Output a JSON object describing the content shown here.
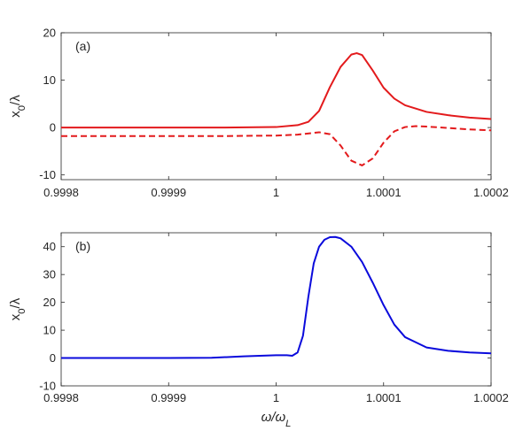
{
  "chart_data": [
    {
      "type": "line",
      "panel_label": "(a)",
      "ylabel": "x_0/λ",
      "xlabel": "",
      "xlim": [
        0.9998,
        1.0002
      ],
      "ylim": [
        -11,
        20
      ],
      "xticks": [
        0.9998,
        0.9999,
        1.0,
        1.0001,
        1.0002
      ],
      "xtick_labels": [
        "0.9998",
        "0.9999",
        "1",
        "1.0001",
        "1.0002"
      ],
      "yticks": [
        -10,
        0,
        10,
        20
      ],
      "ytick_labels": [
        "-10",
        "0",
        "10",
        "20"
      ],
      "grid": false,
      "series": [
        {
          "style": "solid",
          "color": "#e31a1c",
          "x": [
            0.9998,
            0.99985,
            0.9999,
            0.99995,
            1.0,
            1.00002,
            1.00003,
            1.00004,
            1.00005,
            1.00006,
            1.00007,
            1.000075,
            1.00008,
            1.00009,
            1.0001,
            1.00011,
            1.00012,
            1.00014,
            1.00016,
            1.00018,
            1.0002
          ],
          "y": [
            0,
            0,
            0,
            0,
            0.1,
            0.5,
            1.2,
            3.5,
            8.5,
            12.8,
            15.4,
            15.7,
            15.3,
            12.0,
            8.4,
            6.1,
            4.7,
            3.3,
            2.6,
            2.1,
            1.8
          ]
        },
        {
          "style": "dashed",
          "color": "#e31a1c",
          "x": [
            0.9998,
            0.99985,
            0.9999,
            0.99995,
            1.0,
            1.00002,
            1.00004,
            1.00005,
            1.00006,
            1.00007,
            1.00008,
            1.00009,
            1.0001,
            1.00011,
            1.00012,
            1.00013,
            1.00014,
            1.00016,
            1.00018,
            1.0002
          ],
          "y": [
            -1.8,
            -1.8,
            -1.8,
            -1.8,
            -1.7,
            -1.5,
            -1.0,
            -1.4,
            -3.8,
            -7.0,
            -8.0,
            -6.5,
            -3.2,
            -0.8,
            0.1,
            0.3,
            0.2,
            -0.1,
            -0.4,
            -0.6
          ]
        }
      ]
    },
    {
      "type": "line",
      "panel_label": "(b)",
      "ylabel": "x_0/λ",
      "xlabel": "ω/ω_L",
      "xlim": [
        0.9998,
        1.0002
      ],
      "ylim": [
        -10,
        45
      ],
      "xticks": [
        0.9998,
        0.9999,
        1.0,
        1.0001,
        1.0002
      ],
      "xtick_labels": [
        "0.9998",
        "0.9999",
        "1",
        "1.0001",
        "1.0002"
      ],
      "yticks": [
        -10,
        0,
        10,
        20,
        30,
        40
      ],
      "ytick_labels": [
        "-10",
        "0",
        "10",
        "20",
        "30",
        "40"
      ],
      "grid": false,
      "series": [
        {
          "style": "solid",
          "color": "#0a0adc",
          "x": [
            0.9998,
            0.99985,
            0.9999,
            0.99994,
            0.99997,
            1.0,
            1.00001,
            1.000015,
            1.00002,
            1.000025,
            1.00003,
            1.000035,
            1.00004,
            1.000045,
            1.00005,
            1.000055,
            1.00006,
            1.00007,
            1.00008,
            1.00009,
            1.0001,
            1.00011,
            1.00012,
            1.00014,
            1.00016,
            1.00018,
            1.0002
          ],
          "y": [
            0,
            0,
            0,
            0.1,
            0.6,
            1.0,
            1.0,
            0.8,
            2.0,
            8.0,
            22.0,
            34.0,
            40.0,
            42.5,
            43.4,
            43.5,
            43.0,
            40.0,
            34.5,
            27.0,
            19.0,
            12.0,
            7.5,
            3.8,
            2.6,
            2.0,
            1.7
          ]
        }
      ]
    }
  ]
}
